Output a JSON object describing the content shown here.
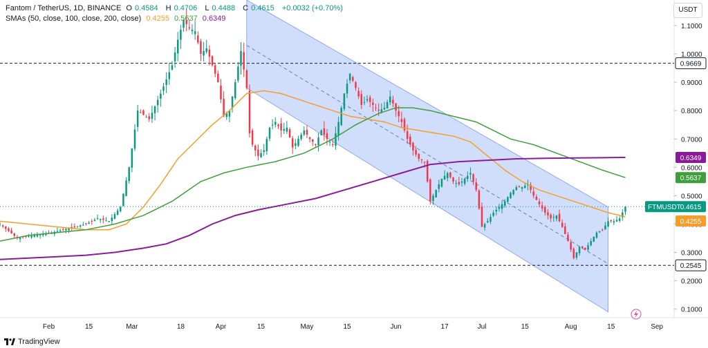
{
  "header": {
    "symbol": "Fantom / TetherUS, 1D, BINANCE",
    "ohlc": [
      {
        "k": "O",
        "v": "0.4584"
      },
      {
        "k": "H",
        "v": "0.4706"
      },
      {
        "k": "L",
        "v": "0.4488"
      },
      {
        "k": "C",
        "v": "0.4615"
      }
    ],
    "change": "+0.0032 (+0.70%)",
    "sma_label": "SMAs (50, close, 100, close, 200, close)",
    "sma_values": [
      "0.4255",
      "0.5637",
      "0.6349"
    ]
  },
  "currency": "USDT",
  "brand": "TradingView",
  "colors": {
    "up": "#089981",
    "down": "#f23645",
    "sma50": "#f59d2a",
    "sma100": "#3f9e3c",
    "sma200": "#8a1a9a",
    "channel": "#aac2f7"
  },
  "chart_data": {
    "type": "candlestick",
    "symbol": "FTMUSDT",
    "y_ticks": [
      "1.1000",
      "1.0000",
      "0.9000",
      "0.8000",
      "0.7000",
      "0.6000",
      "0.5000",
      "0.4000",
      "0.3000",
      "0.2000",
      "0.1000"
    ],
    "ylim": [
      0.07,
      1.19
    ],
    "x_ticks": [
      "Feb",
      "15",
      "Mar",
      "18",
      "Apr",
      "15",
      "May",
      "15",
      "Jun",
      "17",
      "Jul",
      "15",
      "Aug",
      "15",
      "Sep"
    ],
    "x_tick_days": [
      17,
      31,
      46,
      63,
      77,
      91,
      107,
      121,
      138,
      155,
      168,
      183,
      199,
      213,
      229
    ],
    "horizontal_levels": [
      0.9669,
      0.2545
    ],
    "price_labels": [
      {
        "text": "0.9669",
        "value": 0.9669,
        "kind": "level"
      },
      {
        "text": "0.6349",
        "value": 0.6349,
        "kind": "sma200"
      },
      {
        "text": "0.5637",
        "value": 0.5637,
        "kind": "sma100"
      },
      {
        "text": "FTMUSDT",
        "value": 0.4615,
        "kind": "last",
        "price": "0.4615"
      },
      {
        "text": "0.4255",
        "value": 0.4255,
        "kind": "sma50"
      },
      {
        "text": "0.2545",
        "value": 0.2545,
        "kind": "level"
      }
    ],
    "channel": {
      "upper": [
        [
          86,
          1.19
        ],
        [
          212,
          0.46
        ]
      ],
      "lower": [
        [
          86,
          0.88
        ],
        [
          212,
          0.09
        ]
      ],
      "mid": [
        [
          86,
          1.03
        ],
        [
          212,
          0.26
        ]
      ]
    },
    "close_path": [
      [
        0,
        0.4
      ],
      [
        6,
        0.35
      ],
      [
        12,
        0.36
      ],
      [
        18,
        0.37
      ],
      [
        22,
        0.38
      ],
      [
        26,
        0.39
      ],
      [
        30,
        0.4
      ],
      [
        34,
        0.42
      ],
      [
        38,
        0.41
      ],
      [
        42,
        0.46
      ],
      [
        45,
        0.6
      ],
      [
        48,
        0.8
      ],
      [
        52,
        0.77
      ],
      [
        56,
        0.86
      ],
      [
        60,
        0.96
      ],
      [
        62,
        1.05
      ],
      [
        64,
        1.12
      ],
      [
        66,
        1.09
      ],
      [
        68,
        1.08
      ],
      [
        70,
        1.0
      ],
      [
        72,
        1.02
      ],
      [
        74,
        0.96
      ],
      [
        76,
        0.9
      ],
      [
        78,
        0.78
      ],
      [
        80,
        0.8
      ],
      [
        82,
        0.9
      ],
      [
        84,
        1.01
      ],
      [
        86,
        0.88
      ],
      [
        87,
        0.72
      ],
      [
        88,
        0.68
      ],
      [
        90,
        0.64
      ],
      [
        92,
        0.66
      ],
      [
        94,
        0.74
      ],
      [
        96,
        0.76
      ],
      [
        98,
        0.73
      ],
      [
        100,
        0.74
      ],
      [
        102,
        0.67
      ],
      [
        104,
        0.7
      ],
      [
        106,
        0.73
      ],
      [
        108,
        0.7
      ],
      [
        110,
        0.68
      ],
      [
        112,
        0.73
      ],
      [
        114,
        0.7
      ],
      [
        116,
        0.68
      ],
      [
        118,
        0.76
      ],
      [
        120,
        0.86
      ],
      [
        122,
        0.93
      ],
      [
        124,
        0.88
      ],
      [
        126,
        0.82
      ],
      [
        128,
        0.84
      ],
      [
        130,
        0.82
      ],
      [
        132,
        0.8
      ],
      [
        134,
        0.81
      ],
      [
        136,
        0.85
      ],
      [
        138,
        0.8
      ],
      [
        140,
        0.76
      ],
      [
        142,
        0.7
      ],
      [
        144,
        0.66
      ],
      [
        146,
        0.63
      ],
      [
        148,
        0.62
      ],
      [
        150,
        0.48
      ],
      [
        152,
        0.52
      ],
      [
        154,
        0.56
      ],
      [
        156,
        0.58
      ],
      [
        158,
        0.55
      ],
      [
        160,
        0.54
      ],
      [
        162,
        0.56
      ],
      [
        164,
        0.58
      ],
      [
        166,
        0.52
      ],
      [
        168,
        0.39
      ],
      [
        170,
        0.41
      ],
      [
        172,
        0.44
      ],
      [
        174,
        0.46
      ],
      [
        176,
        0.48
      ],
      [
        178,
        0.51
      ],
      [
        180,
        0.53
      ],
      [
        182,
        0.53
      ],
      [
        184,
        0.54
      ],
      [
        186,
        0.5
      ],
      [
        188,
        0.47
      ],
      [
        190,
        0.44
      ],
      [
        192,
        0.42
      ],
      [
        194,
        0.43
      ],
      [
        196,
        0.39
      ],
      [
        198,
        0.34
      ],
      [
        200,
        0.28
      ],
      [
        202,
        0.32
      ],
      [
        204,
        0.31
      ],
      [
        206,
        0.34
      ],
      [
        208,
        0.37
      ],
      [
        210,
        0.38
      ],
      [
        212,
        0.41
      ],
      [
        214,
        0.41
      ],
      [
        216,
        0.42
      ],
      [
        218,
        0.4615
      ]
    ],
    "series": [
      {
        "name": "SMA 50",
        "values": [
          [
            0,
            0.41
          ],
          [
            10,
            0.4
          ],
          [
            20,
            0.39
          ],
          [
            30,
            0.38
          ],
          [
            38,
            0.38
          ],
          [
            44,
            0.4
          ],
          [
            50,
            0.46
          ],
          [
            56,
            0.54
          ],
          [
            62,
            0.63
          ],
          [
            68,
            0.69
          ],
          [
            74,
            0.75
          ],
          [
            80,
            0.8
          ],
          [
            86,
            0.86
          ],
          [
            92,
            0.87
          ],
          [
            98,
            0.86
          ],
          [
            104,
            0.84
          ],
          [
            110,
            0.82
          ],
          [
            116,
            0.8
          ],
          [
            122,
            0.78
          ],
          [
            128,
            0.77
          ],
          [
            134,
            0.76
          ],
          [
            140,
            0.74
          ],
          [
            146,
            0.73
          ],
          [
            152,
            0.72
          ],
          [
            158,
            0.71
          ],
          [
            164,
            0.69
          ],
          [
            170,
            0.64
          ],
          [
            176,
            0.59
          ],
          [
            182,
            0.55
          ],
          [
            188,
            0.52
          ],
          [
            194,
            0.5
          ],
          [
            200,
            0.48
          ],
          [
            206,
            0.46
          ],
          [
            212,
            0.44
          ],
          [
            218,
            0.4255
          ]
        ]
      },
      {
        "name": "SMA 100",
        "values": [
          [
            0,
            0.34
          ],
          [
            10,
            0.36
          ],
          [
            20,
            0.37
          ],
          [
            30,
            0.38
          ],
          [
            40,
            0.4
          ],
          [
            50,
            0.43
          ],
          [
            60,
            0.48
          ],
          [
            70,
            0.55
          ],
          [
            78,
            0.58
          ],
          [
            86,
            0.6
          ],
          [
            96,
            0.62
          ],
          [
            106,
            0.65
          ],
          [
            116,
            0.7
          ],
          [
            124,
            0.75
          ],
          [
            132,
            0.79
          ],
          [
            138,
            0.81
          ],
          [
            144,
            0.81
          ],
          [
            150,
            0.8
          ],
          [
            158,
            0.78
          ],
          [
            166,
            0.76
          ],
          [
            172,
            0.73
          ],
          [
            178,
            0.7
          ],
          [
            186,
            0.68
          ],
          [
            194,
            0.65
          ],
          [
            202,
            0.62
          ],
          [
            210,
            0.59
          ],
          [
            218,
            0.5637
          ]
        ]
      },
      {
        "name": "SMA 200",
        "values": [
          [
            0,
            0.275
          ],
          [
            10,
            0.28
          ],
          [
            20,
            0.285
          ],
          [
            30,
            0.29
          ],
          [
            40,
            0.3
          ],
          [
            50,
            0.315
          ],
          [
            58,
            0.33
          ],
          [
            66,
            0.36
          ],
          [
            74,
            0.4
          ],
          [
            82,
            0.43
          ],
          [
            90,
            0.45
          ],
          [
            100,
            0.47
          ],
          [
            110,
            0.49
          ],
          [
            120,
            0.52
          ],
          [
            130,
            0.55
          ],
          [
            140,
            0.58
          ],
          [
            150,
            0.61
          ],
          [
            160,
            0.62
          ],
          [
            170,
            0.625
          ],
          [
            180,
            0.63
          ],
          [
            190,
            0.632
          ],
          [
            200,
            0.633
          ],
          [
            210,
            0.634
          ],
          [
            218,
            0.6349
          ]
        ]
      }
    ]
  }
}
